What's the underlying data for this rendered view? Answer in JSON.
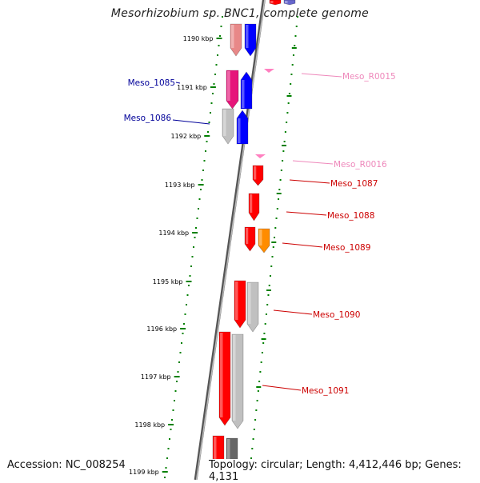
{
  "title": "Mesorhizobium sp. BNC1, complete genome",
  "accession": "Accession: NC_008254",
  "topology": "Topology: circular; Length: 4,412,446 bp; Genes: 4,131",
  "colors": {
    "ticks": "#008000",
    "backbone": "#7f7f7f",
    "cds": "#ff0000",
    "trna": "#ff80c0",
    "blue": "#0000ff",
    "orange": "#ff8c00",
    "gray": "#c0c0c0",
    "label_red": "#cc0000",
    "label_pink": "#ee88bb",
    "label_blue": "#000099"
  },
  "scale_labels": [
    "1190 kbp",
    "1191 kbp",
    "1192 kbp",
    "1193 kbp",
    "1194 kbp",
    "1195 kbp",
    "1196 kbp",
    "1197 kbp",
    "1198 kbp",
    "1199 kbp"
  ],
  "gene_labels": [
    {
      "text": "Meso_R0015",
      "kind": "pink"
    },
    {
      "text": "Meso_R0016",
      "kind": "pink"
    },
    {
      "text": "Meso_1085",
      "kind": "blue"
    },
    {
      "text": "Meso_1086",
      "kind": "blue"
    },
    {
      "text": "Meso_1087",
      "kind": "red"
    },
    {
      "text": "Meso_1088",
      "kind": "red"
    },
    {
      "text": "Meso_1089",
      "kind": "red"
    },
    {
      "text": "Meso_1090",
      "kind": "red"
    },
    {
      "text": "Meso_1091",
      "kind": "red"
    }
  ]
}
